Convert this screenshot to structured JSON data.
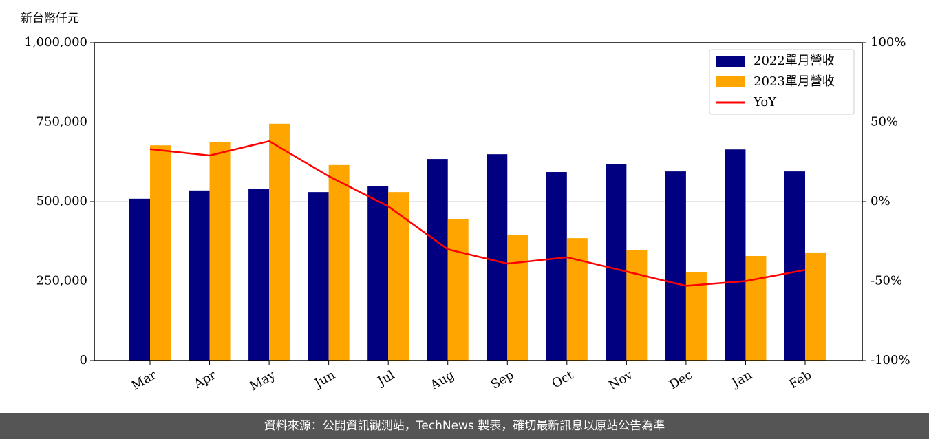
{
  "chart_data": {
    "type": "bar_line",
    "y_label": "新台幣仟元",
    "categories": [
      "Mar",
      "Apr",
      "May",
      "Jun",
      "Jul",
      "Aug",
      "Sep",
      "Oct",
      "Nov",
      "Dec",
      "Jan",
      "Feb"
    ],
    "series": [
      {
        "name": "2022單月營收",
        "color": "#000080",
        "type": "bar",
        "values": [
          509000,
          535000,
          541000,
          530000,
          548000,
          634000,
          649000,
          593000,
          617000,
          595000,
          664000,
          595000
        ]
      },
      {
        "name": "2023單月營收",
        "color": "#ffa500",
        "type": "bar",
        "values": [
          677000,
          688000,
          745000,
          615000,
          530000,
          444000,
          394000,
          385000,
          348000,
          279000,
          329000,
          340000
        ]
      },
      {
        "name": "YoY",
        "color": "#ff0000",
        "type": "line",
        "axis": "y2",
        "values": [
          33,
          29,
          38,
          16,
          -3,
          -30,
          -39,
          -35,
          -44,
          -53,
          -50,
          -43
        ]
      }
    ],
    "ylim": [
      0,
      1000000
    ],
    "yticks": [
      0,
      {
        "value": 250000,
        "label": "250,000"
      },
      {
        "value": 500000,
        "label": "500,000"
      },
      {
        "value": 750000,
        "label": "750,000"
      },
      {
        "value": 1000000,
        "label": "1,000,000"
      }
    ],
    "y2lim": [
      -100,
      100
    ],
    "y2ticks": [
      {
        "value": -100,
        "label": "-100%"
      },
      {
        "value": -50,
        "label": "-50%"
      },
      {
        "value": 0,
        "label": "0%"
      },
      {
        "value": 50,
        "label": "50%"
      },
      {
        "value": 100,
        "label": "100%"
      }
    ],
    "grid": true,
    "legend": "upper-right",
    "footer": "資料來源：公開資訊觀測站，TechNews 製表，確切最新訊息以原站公告為準"
  }
}
